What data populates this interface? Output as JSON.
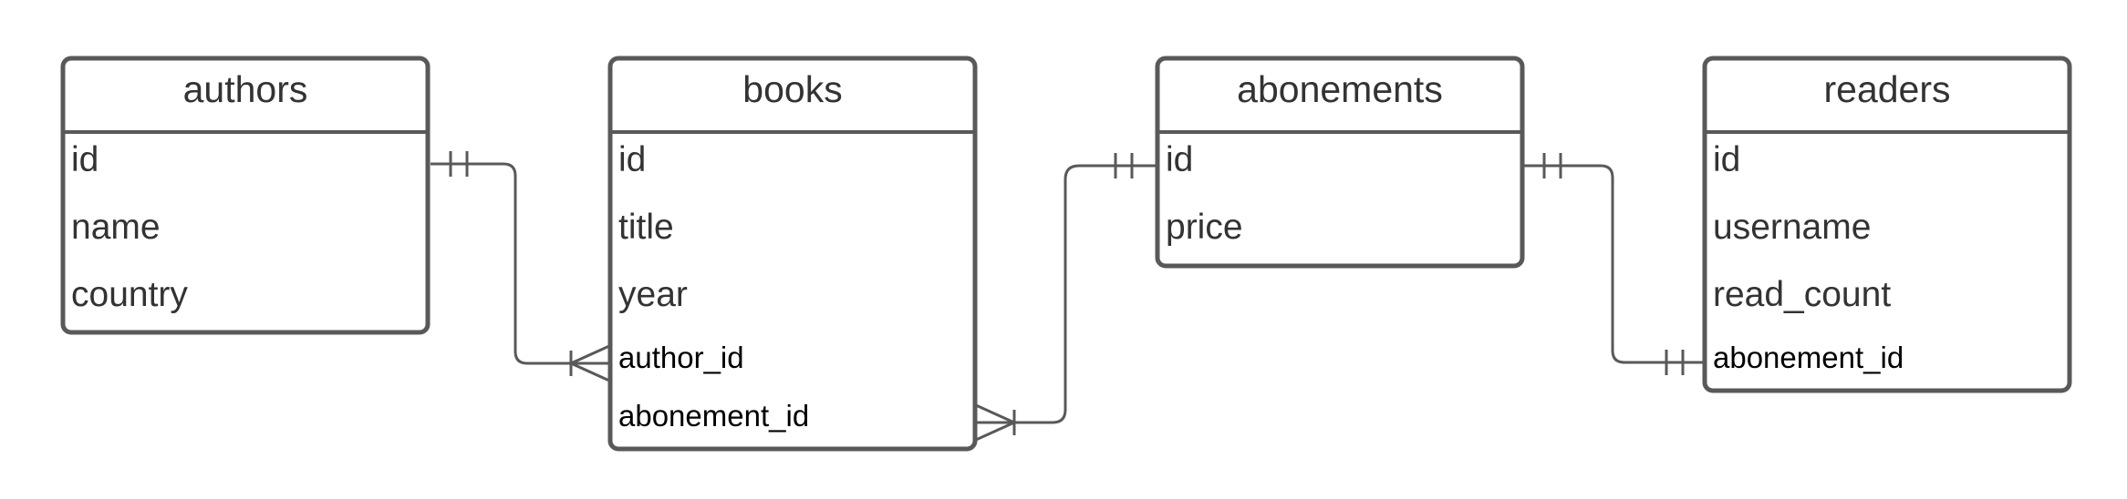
{
  "colors": {
    "stroke": "#595959",
    "header_text": "#333333",
    "field_text": "#333333",
    "fk_text": "#000000",
    "background": "#ffffff"
  },
  "tables": [
    {
      "title": "authors",
      "fields": [
        "id",
        "name",
        "country"
      ]
    },
    {
      "title": "books",
      "fields": [
        "id",
        "title",
        "year",
        "author_id",
        "abonement_id"
      ]
    },
    {
      "title": "abonements",
      "fields": [
        "id",
        "price"
      ]
    },
    {
      "title": "readers",
      "fields": [
        "id",
        "username",
        "read_count",
        "abonement_id"
      ]
    }
  ],
  "relationships": [
    {
      "from": "authors.id",
      "from_end": "one-and-only-one",
      "to": "books.author_id",
      "to_end": "one-or-many"
    },
    {
      "from": "abonements.id",
      "from_end": "one-and-only-one",
      "to": "books.abonement_id",
      "to_end": "one-or-many"
    },
    {
      "from": "abonements.id",
      "from_end": "one-and-only-one",
      "to": "readers.abonement_id",
      "to_end": "one-and-only-one"
    }
  ]
}
